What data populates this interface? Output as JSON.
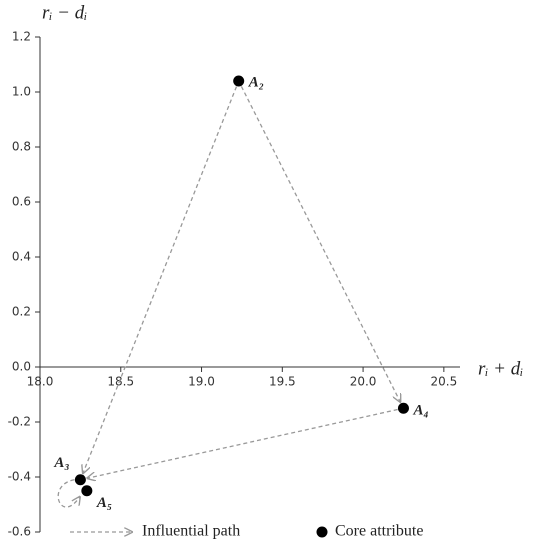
{
  "chart_data": {
    "type": "scatter",
    "y_label": "rᵢ − dᵢ",
    "x_label": "rᵢ + dᵢ",
    "xlim": [
      18.0,
      20.6
    ],
    "ylim": [
      -0.6,
      1.2
    ],
    "xticks": [
      {
        "value": 18,
        "label": "18.0"
      },
      18.5,
      {
        "value": 19,
        "label": "19.0"
      },
      19.5,
      {
        "value": 20,
        "label": "20.0"
      },
      20.5
    ],
    "yticks": [
      {
        "value": 1.2,
        "label": "1.2"
      },
      {
        "value": 1,
        "label": "1.0"
      },
      0.8,
      0.6,
      0.4,
      0.2,
      {
        "value": 0,
        "label": "0.0"
      },
      -0.2,
      -0.4,
      -0.6
    ],
    "series": [
      {
        "name": "Core attribute",
        "color": "#000000",
        "labels": [
          "A₂",
          "A₄",
          "A₃",
          "A₅"
        ],
        "x": [
          19.23,
          20.25,
          18.25,
          18.29
        ],
        "values": [
          1.04,
          -0.15,
          -0.41,
          -0.45
        ]
      }
    ],
    "paths": {
      "name": "Influential path",
      "color": "#999999",
      "links": [
        {
          "from": "A₂",
          "to": "A₃"
        },
        {
          "from": "A₂",
          "to": "A₄"
        },
        {
          "from": "A₄",
          "to": "A₃"
        },
        {
          "from": "A₃",
          "to": "A₅"
        }
      ]
    }
  }
}
